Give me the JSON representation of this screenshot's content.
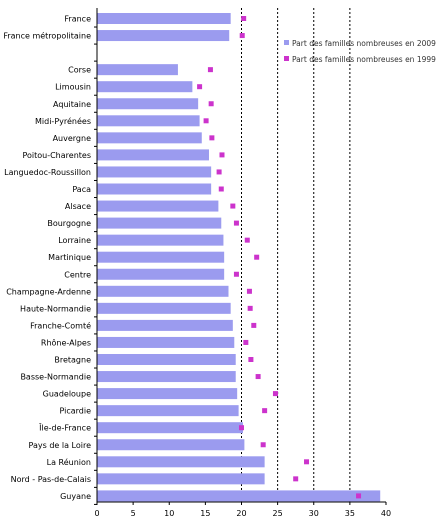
{
  "chart_data": {
    "type": "bar",
    "orientation": "horizontal",
    "title": "",
    "xlabel": "",
    "ylabel": "",
    "xlim": [
      0,
      40
    ],
    "x_ticks": [
      0,
      5,
      10,
      15,
      20,
      25,
      30,
      35,
      40
    ],
    "gridlines": "dotted vertical at 20, 25, 30, 35",
    "legend_position": "top-right",
    "categories": [
      "France",
      "France métropolitaine",
      "",
      "Corse",
      "Limousin",
      "Aquitaine",
      "Midi-Pyrénées",
      "Auvergne",
      "Poitou-Charentes",
      "Languedoc-Roussillon",
      "Paca",
      "Alsace",
      "Bourgogne",
      "Lorraine",
      "Martinique",
      "Centre",
      "Champagne-Ardenne",
      "Haute-Normandie",
      "Franche-Comté",
      "Rhône-Alpes",
      "Bretagne",
      "Basse-Normandie",
      "Guadeloupe",
      "Picardie",
      "Île-de-France",
      "Pays de la Loire",
      "La Réunion",
      "Nord - Pas-de-Calais",
      "Guyane"
    ],
    "series": [
      {
        "name": "Part des familles nombreuses en 2009",
        "mark": "bar",
        "color": "#9b9bef",
        "values": [
          18.5,
          18.3,
          null,
          11.2,
          13.2,
          14.0,
          14.2,
          14.5,
          15.5,
          15.8,
          15.8,
          16.8,
          17.2,
          17.5,
          17.6,
          17.6,
          18.2,
          18.5,
          18.8,
          19.0,
          19.2,
          19.2,
          19.4,
          19.6,
          20.2,
          20.4,
          23.2,
          23.2,
          39.2
        ]
      },
      {
        "name": "Part des familles nombreuses en 1999",
        "mark": "square",
        "color": "#cc33cc",
        "values": [
          20.3,
          20.1,
          null,
          15.7,
          14.2,
          15.8,
          15.1,
          15.9,
          17.3,
          16.9,
          17.2,
          18.8,
          19.3,
          20.8,
          22.1,
          19.3,
          21.1,
          21.2,
          21.7,
          20.6,
          21.3,
          22.3,
          24.7,
          23.2,
          20.0,
          23.0,
          29.0,
          27.5,
          36.2
        ]
      }
    ]
  }
}
